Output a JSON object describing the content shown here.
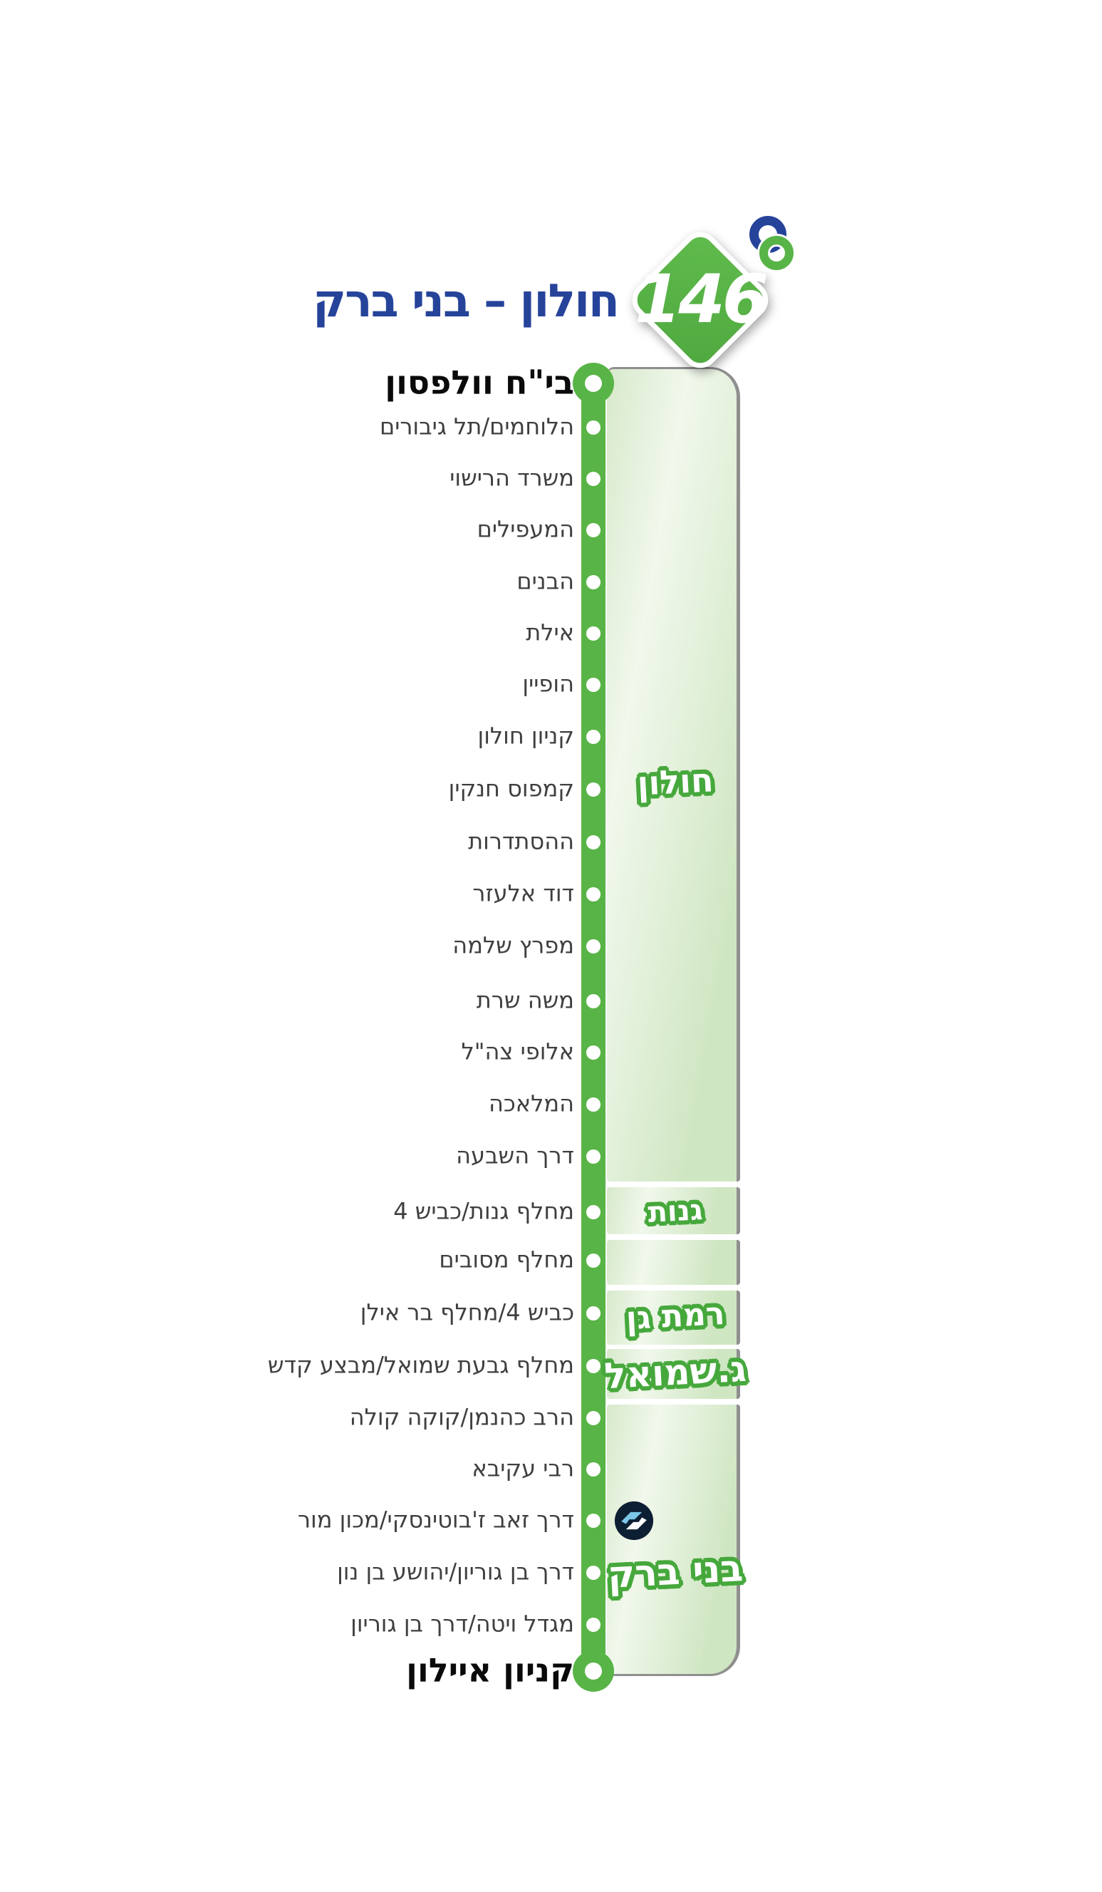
{
  "header": {
    "route_number": "146",
    "title": "חולון – בני ברק",
    "operator_logo": "kavim-logo"
  },
  "route": {
    "stops": [
      {
        "label": "בי\"ח וולפסון",
        "terminal": true
      },
      {
        "label": "הלוחמים/תל גיבורים"
      },
      {
        "label": "משרד הרישוי"
      },
      {
        "label": "המעפילים"
      },
      {
        "label": "הבנים"
      },
      {
        "label": "אילת"
      },
      {
        "label": "הופיין"
      },
      {
        "label": "קניון חולון"
      },
      {
        "label": "קמפוס חנקין"
      },
      {
        "label": "ההסתדרות"
      },
      {
        "label": "דוד אלעזר"
      },
      {
        "label": "מפרץ שלמה"
      },
      {
        "label": "משה שרת"
      },
      {
        "label": "אלופי צה\"ל"
      },
      {
        "label": "המלאכה"
      },
      {
        "label": "דרך השבעה"
      },
      {
        "label": "מחלף גנות/כביש 4"
      },
      {
        "label": "מחלף מסובים"
      },
      {
        "label": "כביש 4/מחלף בר אילן"
      },
      {
        "label": "מחלף גבעת שמואל/מבצע קדש"
      },
      {
        "label": "הרב כהנמן/קוקה קולה"
      },
      {
        "label": "רבי עקיבא"
      },
      {
        "label": "דרך זאב ז'בוטינסקי/מכון מור",
        "icon": "light-rail-icon"
      },
      {
        "label": "דרך בן גוריון/יהושע בן נון"
      },
      {
        "label": "מגדל ויטה/דרך בן גוריון"
      },
      {
        "label": "קניון איילון",
        "terminal": true
      }
    ],
    "regions": [
      {
        "label": "חולון",
        "from": 0,
        "to": 15
      },
      {
        "label": "גנות",
        "from": 16,
        "to": 16
      },
      {
        "label": "",
        "from": 17,
        "to": 17
      },
      {
        "label": "רמת גן",
        "from": 18,
        "to": 18
      },
      {
        "label": "ג.שמואל",
        "from": 19,
        "to": 19
      },
      {
        "label": "בני ברק",
        "from": 20,
        "to": 25
      }
    ]
  },
  "colors": {
    "line_green": "#58b446",
    "label_stroke_green": "#46a83c",
    "panel_green": "#cfe6c2",
    "title_blue": "#26439a",
    "stop_text": "#3f3f3f",
    "panel_border_gray": "#8f8f8f",
    "light_rail_navy": "#0d1f33",
    "light_rail_blue": "#7cc6e8"
  }
}
